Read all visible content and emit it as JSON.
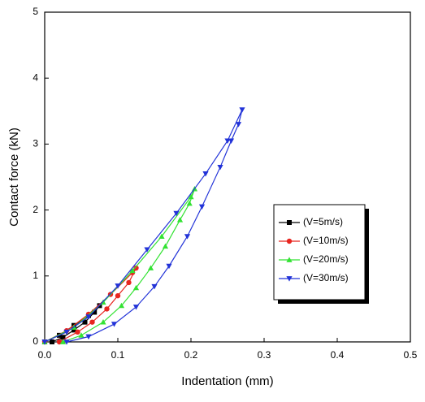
{
  "chart_data": {
    "type": "line",
    "x_label": "Indentation (mm)",
    "y_label": "Contact force (kN)",
    "xlim": [
      0,
      0.5
    ],
    "ylim": [
      0,
      5
    ],
    "xticks": [
      {
        "value": 0,
        "label": "0.0"
      },
      0.1,
      0.2,
      0.3,
      0.4,
      0.5
    ],
    "yticks": [
      0,
      1,
      2,
      3,
      4,
      5
    ],
    "legend": "right",
    "series": [
      {
        "name": "(V=5m/s)",
        "color": "#000000",
        "marker": "square",
        "x": [
          0,
          0.02,
          0.04,
          0.06,
          0.075,
          0.068,
          0.055,
          0.04,
          0.025,
          0.01
        ],
        "values": [
          0,
          0.1,
          0.25,
          0.4,
          0.55,
          0.45,
          0.3,
          0.18,
          0.07,
          0
        ]
      },
      {
        "name": "(V=10m/s)",
        "color": "#e8251f",
        "marker": "circle",
        "x": [
          0,
          0.03,
          0.06,
          0.09,
          0.12,
          0.125,
          0.115,
          0.1,
          0.085,
          0.065,
          0.045,
          0.02
        ],
        "values": [
          0,
          0.17,
          0.42,
          0.72,
          1.05,
          1.12,
          0.9,
          0.7,
          0.5,
          0.3,
          0.15,
          0
        ]
      },
      {
        "name": "(V=20m/s)",
        "color": "#33e233",
        "marker": "triangle-up",
        "x": [
          0,
          0.04,
          0.08,
          0.12,
          0.16,
          0.2,
          0.205,
          0.198,
          0.185,
          0.165,
          0.145,
          0.125,
          0.105,
          0.08,
          0.05,
          0.025
        ],
        "values": [
          0,
          0.22,
          0.6,
          1.08,
          1.6,
          2.2,
          2.32,
          2.1,
          1.85,
          1.45,
          1.12,
          0.82,
          0.55,
          0.3,
          0.1,
          0
        ]
      },
      {
        "name": "(V=30m/s)",
        "color": "#2233d8",
        "marker": "triangle-down",
        "x": [
          0,
          0.03,
          0.06,
          0.1,
          0.14,
          0.18,
          0.22,
          0.25,
          0.27,
          0.265,
          0.255,
          0.24,
          0.215,
          0.195,
          0.17,
          0.15,
          0.125,
          0.095,
          0.06,
          0.03
        ],
        "values": [
          0,
          0.15,
          0.38,
          0.85,
          1.4,
          1.95,
          2.55,
          3.05,
          3.52,
          3.3,
          3.05,
          2.65,
          2.05,
          1.6,
          1.15,
          0.84,
          0.53,
          0.27,
          0.08,
          0
        ]
      }
    ]
  }
}
